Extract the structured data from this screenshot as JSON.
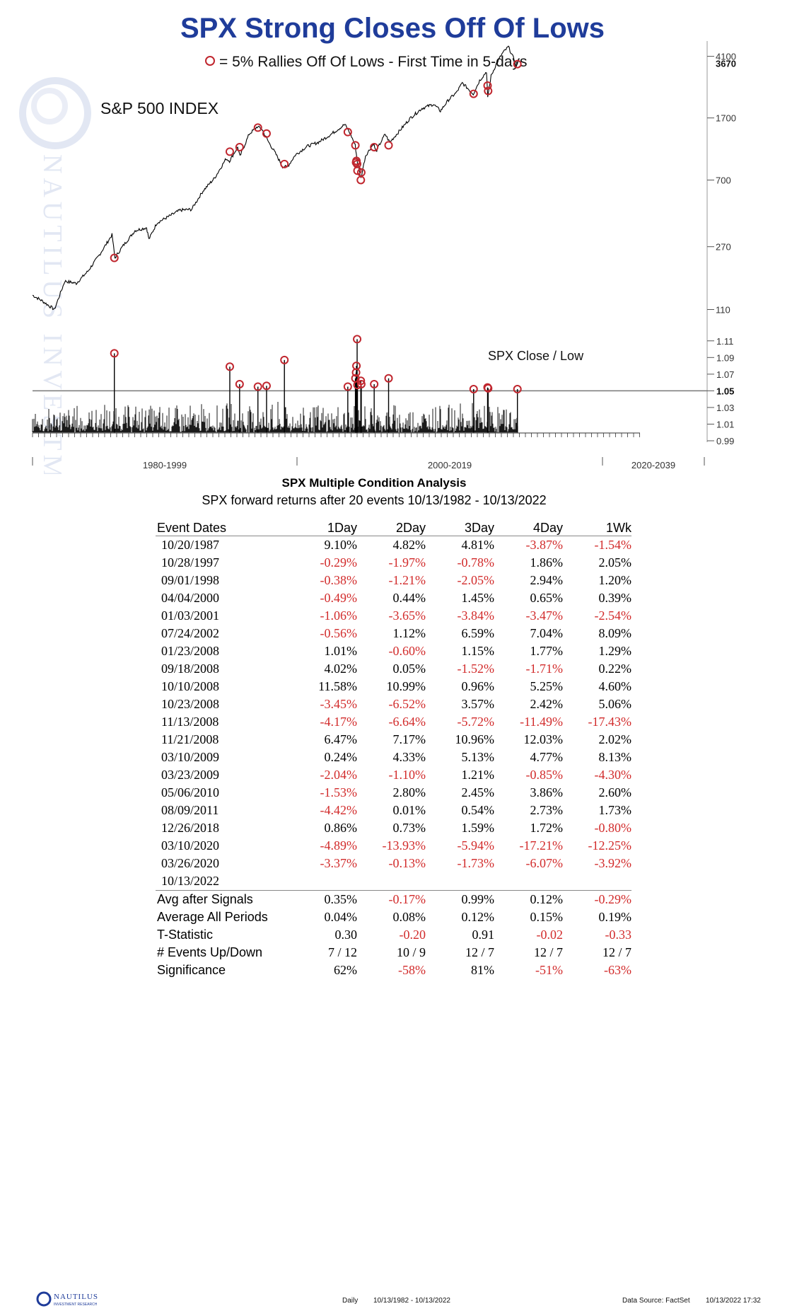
{
  "title": "SPX Strong Closes Off Of Lows",
  "legend": "= 5% Rallies Off Of Lows - First Time in 5-days",
  "index_label": "S&P 500 INDEX",
  "watermark": "NAUTILUS INVESTMENT RESEARCH",
  "colors": {
    "title": "#1f3c9a",
    "marker": "#c0262e",
    "negative": "#d22b2b",
    "watermark": "#dfe5f2"
  },
  "chart_data": [
    {
      "type": "line",
      "name": "price-panel",
      "title": "S&P 500 INDEX",
      "yscale": "log",
      "ylim": [
        95,
        5000
      ],
      "xlim": [
        1980.7,
        2039.0
      ],
      "y_ticks": [
        110,
        270,
        700,
        1700,
        4100
      ],
      "last_value": "3670",
      "series": [
        {
          "name": "SPX",
          "x": [
            1980.7,
            1981.5,
            1982.6,
            1983.5,
            1984.5,
            1985.5,
            1986.5,
            1987.6,
            1987.85,
            1988.5,
            1989.6,
            1990.6,
            1990.8,
            1991.5,
            1992.5,
            1993.5,
            1994.5,
            1995.5,
            1996.5,
            1997.5,
            1997.8,
            1998.5,
            1998.7,
            1999.5,
            2000.2,
            2000.6,
            2001.2,
            2001.7,
            2002.4,
            2002.8,
            2003.5,
            2004.5,
            2005.5,
            2006.5,
            2007.8,
            2008.3,
            2008.7,
            2008.9,
            2009.2,
            2009.6,
            2010.3,
            2010.5,
            2011.3,
            2011.7,
            2012.5,
            2013.5,
            2014.5,
            2015.5,
            2016.1,
            2016.8,
            2017.5,
            2018.0,
            2018.95,
            2019.5,
            2020.1,
            2020.2,
            2020.5,
            2021.0,
            2021.5,
            2022.0,
            2022.5,
            2022.8
          ],
          "values": [
            135,
            125,
            110,
            165,
            160,
            190,
            240,
            320,
            230,
            270,
            340,
            355,
            300,
            380,
            415,
            455,
            460,
            600,
            720,
            950,
            920,
            1120,
            980,
            1350,
            1500,
            1450,
            1200,
            1050,
            850,
            840,
            1000,
            1130,
            1200,
            1330,
            1550,
            1350,
            1150,
            900,
            720,
            990,
            1180,
            1050,
            1350,
            1200,
            1400,
            1700,
            1950,
            2070,
            1880,
            2200,
            2450,
            2800,
            2400,
            2900,
            3300,
            2300,
            3100,
            3750,
            4300,
            4700,
            3900,
            3670
          ]
        }
      ],
      "signals": {
        "name": "5% Rallies Off Of Lows - First Time in 5-days",
        "x": [
          1987.8,
          1997.82,
          1998.67,
          2000.26,
          2001.01,
          2002.56,
          2008.06,
          2008.72,
          2008.78,
          2008.81,
          2008.87,
          2008.9,
          2009.19,
          2009.23,
          2010.35,
          2011.6,
          2018.98,
          2020.19,
          2020.24,
          2022.78
        ],
        "values": [
          230,
          1050,
          1120,
          1480,
          1360,
          880,
          1390,
          1150,
          900,
          920,
          880,
          800,
          700,
          780,
          1120,
          1150,
          2400,
          2700,
          2500,
          3670
        ]
      }
    },
    {
      "type": "line",
      "name": "ratio-panel",
      "title": "SPX Close / Low",
      "ylim": [
        0.99,
        1.12
      ],
      "y_ticks": [
        0.99,
        1.01,
        1.03,
        1.05,
        1.07,
        1.09,
        1.11
      ],
      "threshold": 1.05,
      "threshold_label": "1.05",
      "signals": {
        "x": [
          1987.8,
          1997.82,
          1998.67,
          2000.26,
          2001.01,
          2002.56,
          2008.06,
          2008.72,
          2008.78,
          2008.81,
          2008.87,
          2008.9,
          2009.19,
          2009.23,
          2010.35,
          2011.6,
          2018.98,
          2020.19,
          2020.24,
          2022.78
        ],
        "values": [
          1.095,
          1.079,
          1.058,
          1.055,
          1.056,
          1.087,
          1.055,
          1.065,
          1.072,
          1.08,
          1.112,
          1.057,
          1.062,
          1.058,
          1.058,
          1.065,
          1.052,
          1.054,
          1.053,
          1.052
        ]
      }
    }
  ],
  "x_axis": {
    "labels": [
      "1980-1999",
      "2000-2019",
      "2020-2039"
    ]
  },
  "analysis": {
    "title": "SPX Multiple Condition Analysis",
    "subtitle": "SPX forward returns after 20 events 10/13/1982 - 10/13/2022",
    "columns": [
      "Event Dates",
      "1Day",
      "2Day",
      "3Day",
      "4Day",
      "1Wk"
    ],
    "rows": [
      [
        "10/20/1987",
        "9.10%",
        "4.82%",
        "4.81%",
        "-3.87%",
        "-1.54%"
      ],
      [
        "10/28/1997",
        "-0.29%",
        "-1.97%",
        "-0.78%",
        "1.86%",
        "2.05%"
      ],
      [
        "09/01/1998",
        "-0.38%",
        "-1.21%",
        "-2.05%",
        "2.94%",
        "1.20%"
      ],
      [
        "04/04/2000",
        "-0.49%",
        "0.44%",
        "1.45%",
        "0.65%",
        "0.39%"
      ],
      [
        "01/03/2001",
        "-1.06%",
        "-3.65%",
        "-3.84%",
        "-3.47%",
        "-2.54%"
      ],
      [
        "07/24/2002",
        "-0.56%",
        "1.12%",
        "6.59%",
        "7.04%",
        "8.09%"
      ],
      [
        "01/23/2008",
        "1.01%",
        "-0.60%",
        "1.15%",
        "1.77%",
        "1.29%"
      ],
      [
        "09/18/2008",
        "4.02%",
        "0.05%",
        "-1.52%",
        "-1.71%",
        "0.22%"
      ],
      [
        "10/10/2008",
        "11.58%",
        "10.99%",
        "0.96%",
        "5.25%",
        "4.60%"
      ],
      [
        "10/23/2008",
        "-3.45%",
        "-6.52%",
        "3.57%",
        "2.42%",
        "5.06%"
      ],
      [
        "11/13/2008",
        "-4.17%",
        "-6.64%",
        "-5.72%",
        "-11.49%",
        "-17.43%"
      ],
      [
        "11/21/2008",
        "6.47%",
        "7.17%",
        "10.96%",
        "12.03%",
        "2.02%"
      ],
      [
        "03/10/2009",
        "0.24%",
        "4.33%",
        "5.13%",
        "4.77%",
        "8.13%"
      ],
      [
        "03/23/2009",
        "-2.04%",
        "-1.10%",
        "1.21%",
        "-0.85%",
        "-4.30%"
      ],
      [
        "05/06/2010",
        "-1.53%",
        "2.80%",
        "2.45%",
        "3.86%",
        "2.60%"
      ],
      [
        "08/09/2011",
        "-4.42%",
        "0.01%",
        "0.54%",
        "2.73%",
        "1.73%"
      ],
      [
        "12/26/2018",
        "0.86%",
        "0.73%",
        "1.59%",
        "1.72%",
        "-0.80%"
      ],
      [
        "03/10/2020",
        "-4.89%",
        "-13.93%",
        "-5.94%",
        "-17.21%",
        "-12.25%"
      ],
      [
        "03/26/2020",
        "-3.37%",
        "-0.13%",
        "-1.73%",
        "-6.07%",
        "-3.92%"
      ],
      [
        "10/13/2022",
        "",
        "",
        "",
        "",
        ""
      ]
    ],
    "summary": [
      [
        "Avg after Signals",
        "0.35%",
        "-0.17%",
        "0.99%",
        "0.12%",
        "-0.29%"
      ],
      [
        "Average All Periods",
        "0.04%",
        "0.08%",
        "0.12%",
        "0.15%",
        "0.19%"
      ],
      [
        "T-Statistic",
        "0.30",
        "-0.20",
        "0.91",
        "-0.02",
        "-0.33"
      ],
      [
        "# Events Up/Down",
        "7 / 12",
        "10 / 9",
        "12 / 7",
        "12 / 7",
        "12 / 7"
      ],
      [
        "Significance",
        "62%",
        "-58%",
        "81%",
        "-51%",
        "-63%"
      ]
    ]
  },
  "footer": {
    "logo_text": "NAUTILUS",
    "logo_sub": "INVESTMENT RESEARCH",
    "frequency": "Daily",
    "range": "10/13/1982 - 10/13/2022",
    "source": "Data Source: FactSet",
    "timestamp": "10/13/2022 17:32"
  }
}
